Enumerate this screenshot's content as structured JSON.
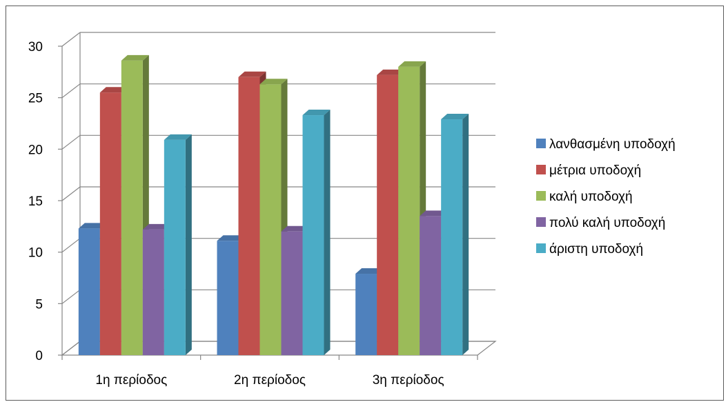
{
  "chart_data": {
    "type": "bar",
    "title": "",
    "xlabel": "",
    "ylabel": "",
    "ylim": [
      0,
      30
    ],
    "yticks": [
      0,
      5,
      10,
      15,
      20,
      25,
      30
    ],
    "categories": [
      "1η περίοδος",
      "2η περίοδος",
      "3η περίοδος"
    ],
    "series": [
      {
        "name": "λανθασμένη υποδοχή",
        "values": [
          12.3,
          11.1,
          7.9
        ]
      },
      {
        "name": "μέτρια υποδοχή",
        "values": [
          25.5,
          27.0,
          27.2
        ]
      },
      {
        "name": "καλή υποδοχή",
        "values": [
          28.6,
          26.3,
          28.0
        ]
      },
      {
        "name": "πολύ καλή υποδοχή",
        "values": [
          12.2,
          12.0,
          13.5
        ]
      },
      {
        "name": "άριστη υποδοχή",
        "values": [
          20.9,
          23.3,
          22.9
        ]
      }
    ],
    "colors": [
      "#4f81bd",
      "#c0504d",
      "#9bbb59",
      "#8064a2",
      "#4bacc6"
    ],
    "grid": true,
    "legend": "right",
    "style": "3d-clustered-column"
  }
}
